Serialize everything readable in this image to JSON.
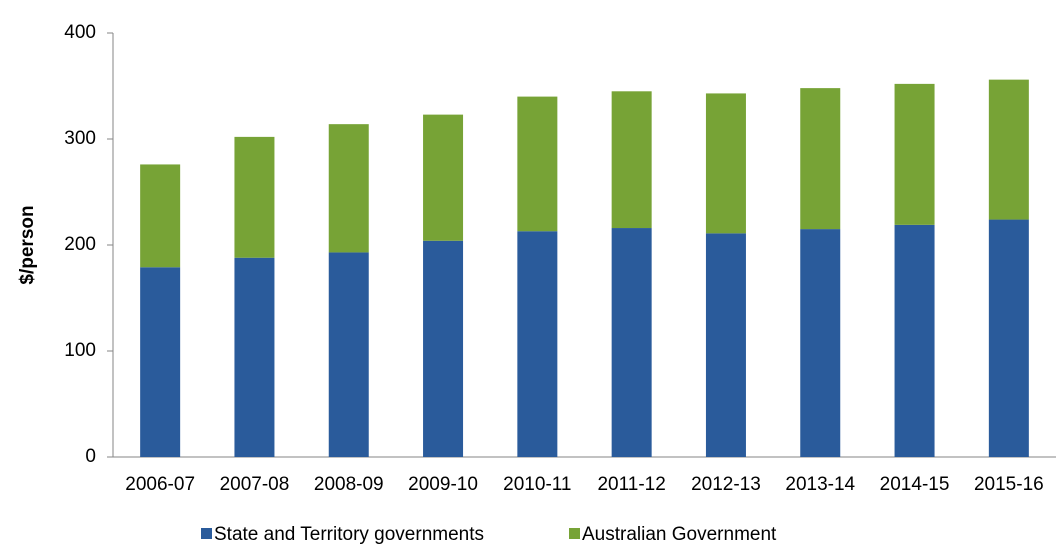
{
  "chart_data": {
    "type": "stacked_bar",
    "y_label": "$/person",
    "categories": [
      "2006-07",
      "2007-08",
      "2008-09",
      "2009-10",
      "2010-11",
      "2011-12",
      "2012-13",
      "2013-14",
      "2014-15",
      "2015-16"
    ],
    "series": [
      {
        "name": "State and Territory governments",
        "color": "#2a5b9b",
        "values": [
          179,
          188,
          193,
          204,
          213,
          216,
          211,
          215,
          219,
          224
        ]
      },
      {
        "name": "Australian Government",
        "color": "#77a336",
        "values": [
          97,
          114,
          121,
          119,
          127,
          129,
          132,
          133,
          133,
          132
        ]
      }
    ],
    "ylim": [
      0,
      400
    ],
    "yticks": [
      0,
      100,
      200,
      300,
      400
    ],
    "grid": false,
    "legend": "bottom"
  }
}
